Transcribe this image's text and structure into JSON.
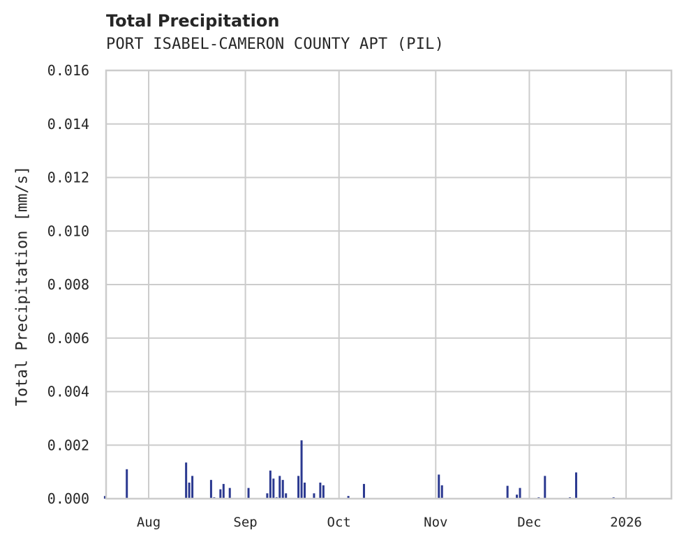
{
  "chart_data": {
    "type": "bar",
    "title": "Total Precipitation",
    "subtitle": "PORT ISABEL-CAMERON COUNTY APT (PIL)",
    "xlabel": "",
    "ylabel": "Total Precipitation [mm/s]",
    "ylim": [
      0,
      0.016
    ],
    "yticks": [
      "0.000",
      "0.002",
      "0.004",
      "0.006",
      "0.008",
      "0.010",
      "0.012",
      "0.014",
      "0.016"
    ],
    "xticks": [
      "Aug",
      "Sep",
      "Oct",
      "Nov",
      "Dec",
      "2026"
    ],
    "grid": true,
    "legend": null,
    "color": "#2b3990",
    "x": [
      "2025-07-18",
      "2025-07-25",
      "2025-08-13",
      "2025-08-14",
      "2025-08-15",
      "2025-08-21",
      "2025-08-22",
      "2025-08-24",
      "2025-08-25",
      "2025-08-27",
      "2025-09-02",
      "2025-09-08",
      "2025-09-09",
      "2025-09-10",
      "2025-09-11",
      "2025-09-12",
      "2025-09-13",
      "2025-09-14",
      "2025-09-18",
      "2025-09-19",
      "2025-09-20",
      "2025-09-23",
      "2025-09-25",
      "2025-09-26",
      "2025-10-04",
      "2025-10-09",
      "2025-11-02",
      "2025-11-03",
      "2025-11-24",
      "2025-11-27",
      "2025-11-28",
      "2025-12-04",
      "2025-12-06",
      "2025-12-14",
      "2025-12-16",
      "2025-12-28"
    ],
    "values": [
      0.0001,
      0.0011,
      0.00135,
      0.0006,
      0.00085,
      0.0007,
      5e-05,
      0.00035,
      0.00055,
      0.0004,
      0.0004,
      0.0002,
      0.00105,
      0.00075,
      5e-05,
      0.00085,
      0.0007,
      0.0002,
      0.00085,
      0.00218,
      0.0006,
      0.0002,
      0.0006,
      0.0005,
      0.0001,
      0.00055,
      0.0009,
      0.0005,
      0.00048,
      0.00015,
      0.0004,
      5e-05,
      0.00085,
      5e-05,
      0.00098,
      5e-05
    ]
  },
  "labels": {
    "title": "Total Precipitation",
    "subtitle": "PORT ISABEL-CAMERON COUNTY APT (PIL)",
    "ylabel": "Total Precipitation [mm/s]"
  }
}
